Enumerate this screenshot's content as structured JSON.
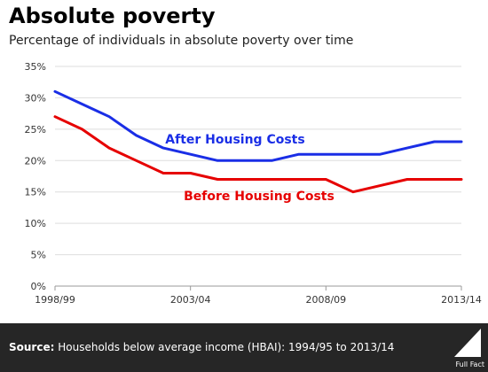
{
  "header": {
    "title": "Absolute poverty",
    "subtitle": "Percentage of individuals in absolute poverty over time"
  },
  "footer": {
    "source_label": "Source:",
    "source_text": "Households below average income (HBAI): 1994/95 to 2013/14",
    "logo_text": "Full Fact"
  },
  "colors": {
    "after_housing": "#1a2ee6",
    "before_housing": "#e60000",
    "grid": "#dddddd"
  },
  "chart_data": {
    "type": "line",
    "title": "Absolute poverty",
    "subtitle": "Percentage of individuals in absolute poverty over time",
    "xlabel": "",
    "ylabel": "",
    "x": [
      "1998/99",
      "1999/00",
      "2000/01",
      "2001/02",
      "2002/03",
      "2003/04",
      "2004/05",
      "2005/06",
      "2006/07",
      "2007/08",
      "2008/09",
      "2009/10",
      "2010/11",
      "2011/12",
      "2012/13",
      "2013/14"
    ],
    "x_tick_labels": [
      "1998/99",
      "2003/04",
      "2008/09",
      "2013/14"
    ],
    "y_tick_labels": [
      "0%",
      "5%",
      "10%",
      "15%",
      "20%",
      "25%",
      "30%",
      "35%"
    ],
    "ylim": [
      0,
      35
    ],
    "y_ticks": [
      0,
      5,
      10,
      15,
      20,
      25,
      30,
      35
    ],
    "grid": "horizontal",
    "legend": "inline labels",
    "series": [
      {
        "name": "After Housing Costs",
        "color": "#1a2ee6",
        "values": [
          31,
          29,
          27,
          24,
          22,
          21,
          20,
          20,
          20,
          21,
          21,
          21,
          21,
          22,
          23,
          23
        ]
      },
      {
        "name": "Before Housing Costs",
        "color": "#e60000",
        "values": [
          27,
          25,
          22,
          20,
          18,
          18,
          17,
          17,
          17,
          17,
          17,
          15,
          16,
          17,
          17,
          17
        ]
      }
    ]
  }
}
